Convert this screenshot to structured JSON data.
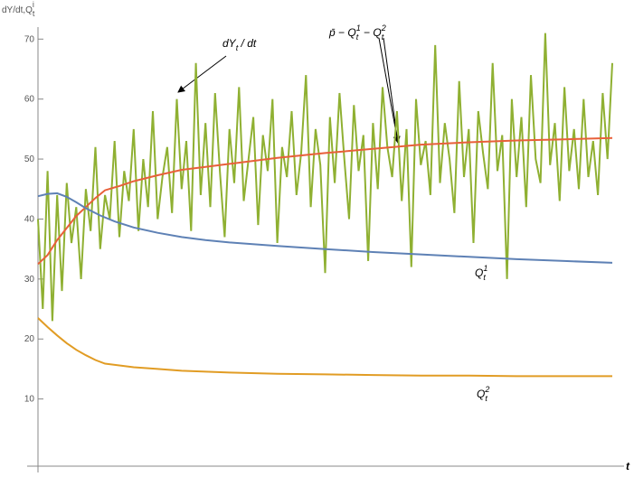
{
  "chart_data": {
    "type": "line",
    "ylabel": [
      {
        "t": "dY/dt,Q",
        "role": "base"
      },
      {
        "t": "t",
        "role": "sub"
      },
      {
        "t": "i",
        "role": "sup"
      }
    ],
    "xlabel": "t",
    "xlim": [
      0,
      120
    ],
    "ylim": [
      -1.2,
      72
    ],
    "yticks": [
      10,
      20,
      30,
      40,
      50,
      60,
      70
    ],
    "series": [
      {
        "color": "#8fb032",
        "x": [
          0,
          1,
          2,
          3,
          4,
          5,
          6,
          7,
          8,
          9,
          10,
          11,
          12,
          13,
          14,
          15,
          16,
          17,
          18,
          19,
          20,
          21,
          22,
          23,
          24,
          25,
          26,
          27,
          28,
          29,
          30,
          31,
          32,
          33,
          34,
          35,
          36,
          37,
          38,
          39,
          40,
          41,
          42,
          43,
          44,
          45,
          46,
          47,
          48,
          49,
          50,
          51,
          52,
          53,
          54,
          55,
          56,
          57,
          58,
          59,
          60,
          61,
          62,
          63,
          64,
          65,
          66,
          67,
          68,
          69,
          70,
          71,
          72,
          73,
          74,
          75,
          76,
          77,
          78,
          79,
          80,
          81,
          82,
          83,
          84,
          85,
          86,
          87,
          88,
          89,
          90,
          91,
          92,
          93,
          94,
          95,
          96,
          97,
          98,
          99,
          100,
          101,
          102,
          103,
          104,
          105,
          106,
          107,
          108,
          109,
          110,
          111,
          112,
          113,
          114,
          115,
          116,
          117,
          118,
          119,
          120
        ],
        "values": [
          40,
          25,
          48,
          23,
          44,
          28,
          46,
          36,
          42,
          30,
          45,
          38,
          52,
          35,
          44,
          40,
          53,
          37,
          48,
          43,
          55,
          38,
          50,
          42,
          58,
          40,
          47,
          52,
          41,
          60,
          45,
          53,
          38,
          66,
          44,
          56,
          42,
          61,
          48,
          37,
          55,
          46,
          62,
          43,
          50,
          57,
          39,
          54,
          48,
          60,
          36,
          52,
          47,
          58,
          44,
          51,
          64,
          42,
          55,
          49,
          31,
          57,
          46,
          61,
          50,
          40,
          59,
          48,
          54,
          33,
          56,
          45,
          62,
          52,
          47,
          58,
          43,
          55,
          32,
          60,
          49,
          53,
          44,
          69,
          46,
          56,
          50,
          41,
          63,
          47,
          55,
          36,
          58,
          51,
          45,
          66,
          48,
          54,
          30,
          60,
          47,
          57,
          42,
          64,
          50,
          46,
          71,
          49,
          56,
          43,
          62,
          48,
          55,
          45,
          60,
          47,
          53,
          44,
          61,
          50,
          66
        ]
      },
      {
        "color": "#e8603a",
        "x": [
          0,
          2,
          4,
          6,
          8,
          10,
          12,
          14,
          17,
          20,
          25,
          30,
          35,
          40,
          50,
          60,
          70,
          80,
          90,
          100,
          110,
          120
        ],
        "values": [
          32.5,
          34,
          36.5,
          38.5,
          40.5,
          42,
          43.5,
          44.8,
          45.5,
          46.3,
          47.3,
          48.2,
          48.7,
          49.2,
          50.2,
          51,
          51.7,
          52.4,
          52.8,
          53.1,
          53.3,
          53.5
        ]
      },
      {
        "color": "#5e81b5",
        "x": [
          0,
          2,
          4,
          6,
          8,
          10,
          13,
          16,
          20,
          25,
          30,
          35,
          40,
          50,
          60,
          70,
          80,
          90,
          100,
          110,
          120
        ],
        "values": [
          43.8,
          44.2,
          44.3,
          43.7,
          42.8,
          41.8,
          40.6,
          39.6,
          38.6,
          37.7,
          37.0,
          36.5,
          36.1,
          35.5,
          35.0,
          34.5,
          34.1,
          33.7,
          33.3,
          33.0,
          32.7
        ]
      },
      {
        "color": "#e19c24",
        "x": [
          0,
          2,
          4,
          6,
          8,
          10,
          12,
          14,
          17,
          20,
          25,
          30,
          40,
          50,
          60,
          70,
          80,
          90,
          100,
          120
        ],
        "values": [
          23.5,
          22,
          20.6,
          19.3,
          18.2,
          17.3,
          16.5,
          15.9,
          15.6,
          15.3,
          15.0,
          14.7,
          14.4,
          14.2,
          14.1,
          14.0,
          13.9,
          13.9,
          13.8,
          13.8
        ]
      }
    ],
    "annotations": [
      [
        {
          "t": "dY",
          "role": "base"
        },
        {
          "t": "t",
          "role": "sub"
        },
        {
          "t": " / dt",
          "role": "base"
        }
      ],
      [
        {
          "t": "p̄ − Q",
          "role": "base"
        },
        {
          "t": "t",
          "role": "sub"
        },
        {
          "t": "1",
          "role": "sup"
        },
        {
          "t": " − Q",
          "role": "base"
        },
        {
          "t": "t",
          "role": "sub"
        },
        {
          "t": "2",
          "role": "sup"
        }
      ],
      [
        {
          "t": "Q",
          "role": "base"
        },
        {
          "t": "t",
          "role": "sub"
        },
        {
          "t": "1",
          "role": "sup"
        }
      ],
      [
        {
          "t": "Q",
          "role": "base"
        },
        {
          "t": "t",
          "role": "sub"
        },
        {
          "t": "2",
          "role": "sup"
        }
      ]
    ]
  }
}
